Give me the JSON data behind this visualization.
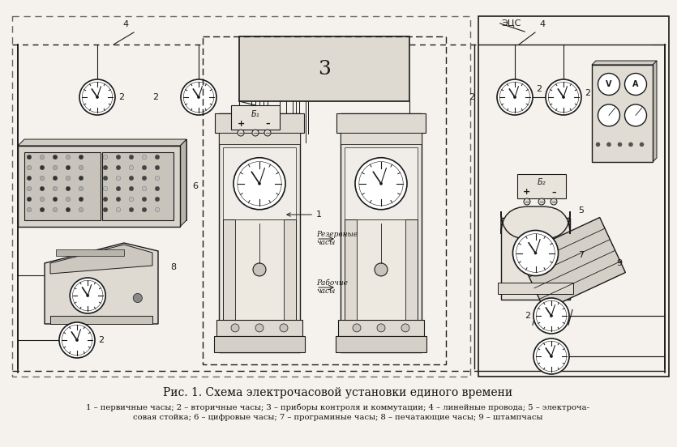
{
  "background_color": "#f5f2ed",
  "figure_bg": "#f0ece5",
  "title_line1": "Рис. 1. Схема электрочасовой установки единого времени",
  "caption_line1": "1 – первичные часы; 2 – вторичные часы; 3 – приборы контроля и коммутации; 4 – линейные провода; 5 – электроча-",
  "caption_line2": "совая стойка; 6 – цифровые часы; 7 – програминые часы; 8 – печатающие часы; 9 – штампчасы",
  "ecs_label": "ЭЦС",
  "label_3": "3",
  "label_b1": "Б₁",
  "label_b2": "Б₂",
  "label_rezerv": "Резервные\nчасы",
  "label_rabochie": "Рабочие\nчасы",
  "line_color": "#1a1a1a",
  "fig_width": 8.35,
  "fig_height": 5.52,
  "dpi": 100
}
